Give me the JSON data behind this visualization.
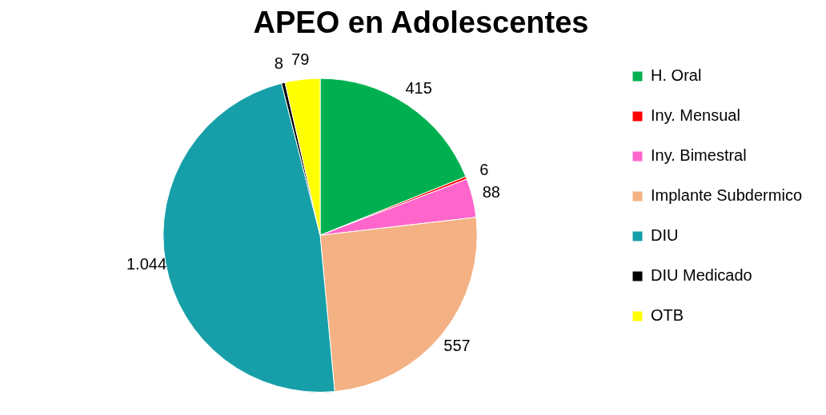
{
  "chart_data": {
    "type": "pie",
    "title": "APEO en Adolescentes",
    "categories": [
      "H. Oral",
      "Iny. Mensual",
      "Iny. Bimestral",
      "Implante Subdermico",
      "DIU",
      "DIU Medicado",
      "OTB"
    ],
    "values": [
      415,
      6,
      88,
      557,
      1044,
      8,
      79
    ],
    "value_labels": [
      "415",
      "6",
      "88",
      "557",
      "1.044",
      "8",
      "79"
    ],
    "colors": [
      "#00b050",
      "#ff0000",
      "#ff66cc",
      "#f4b183",
      "#169fa8",
      "#000000",
      "#ffff00"
    ],
    "legend": "right"
  }
}
